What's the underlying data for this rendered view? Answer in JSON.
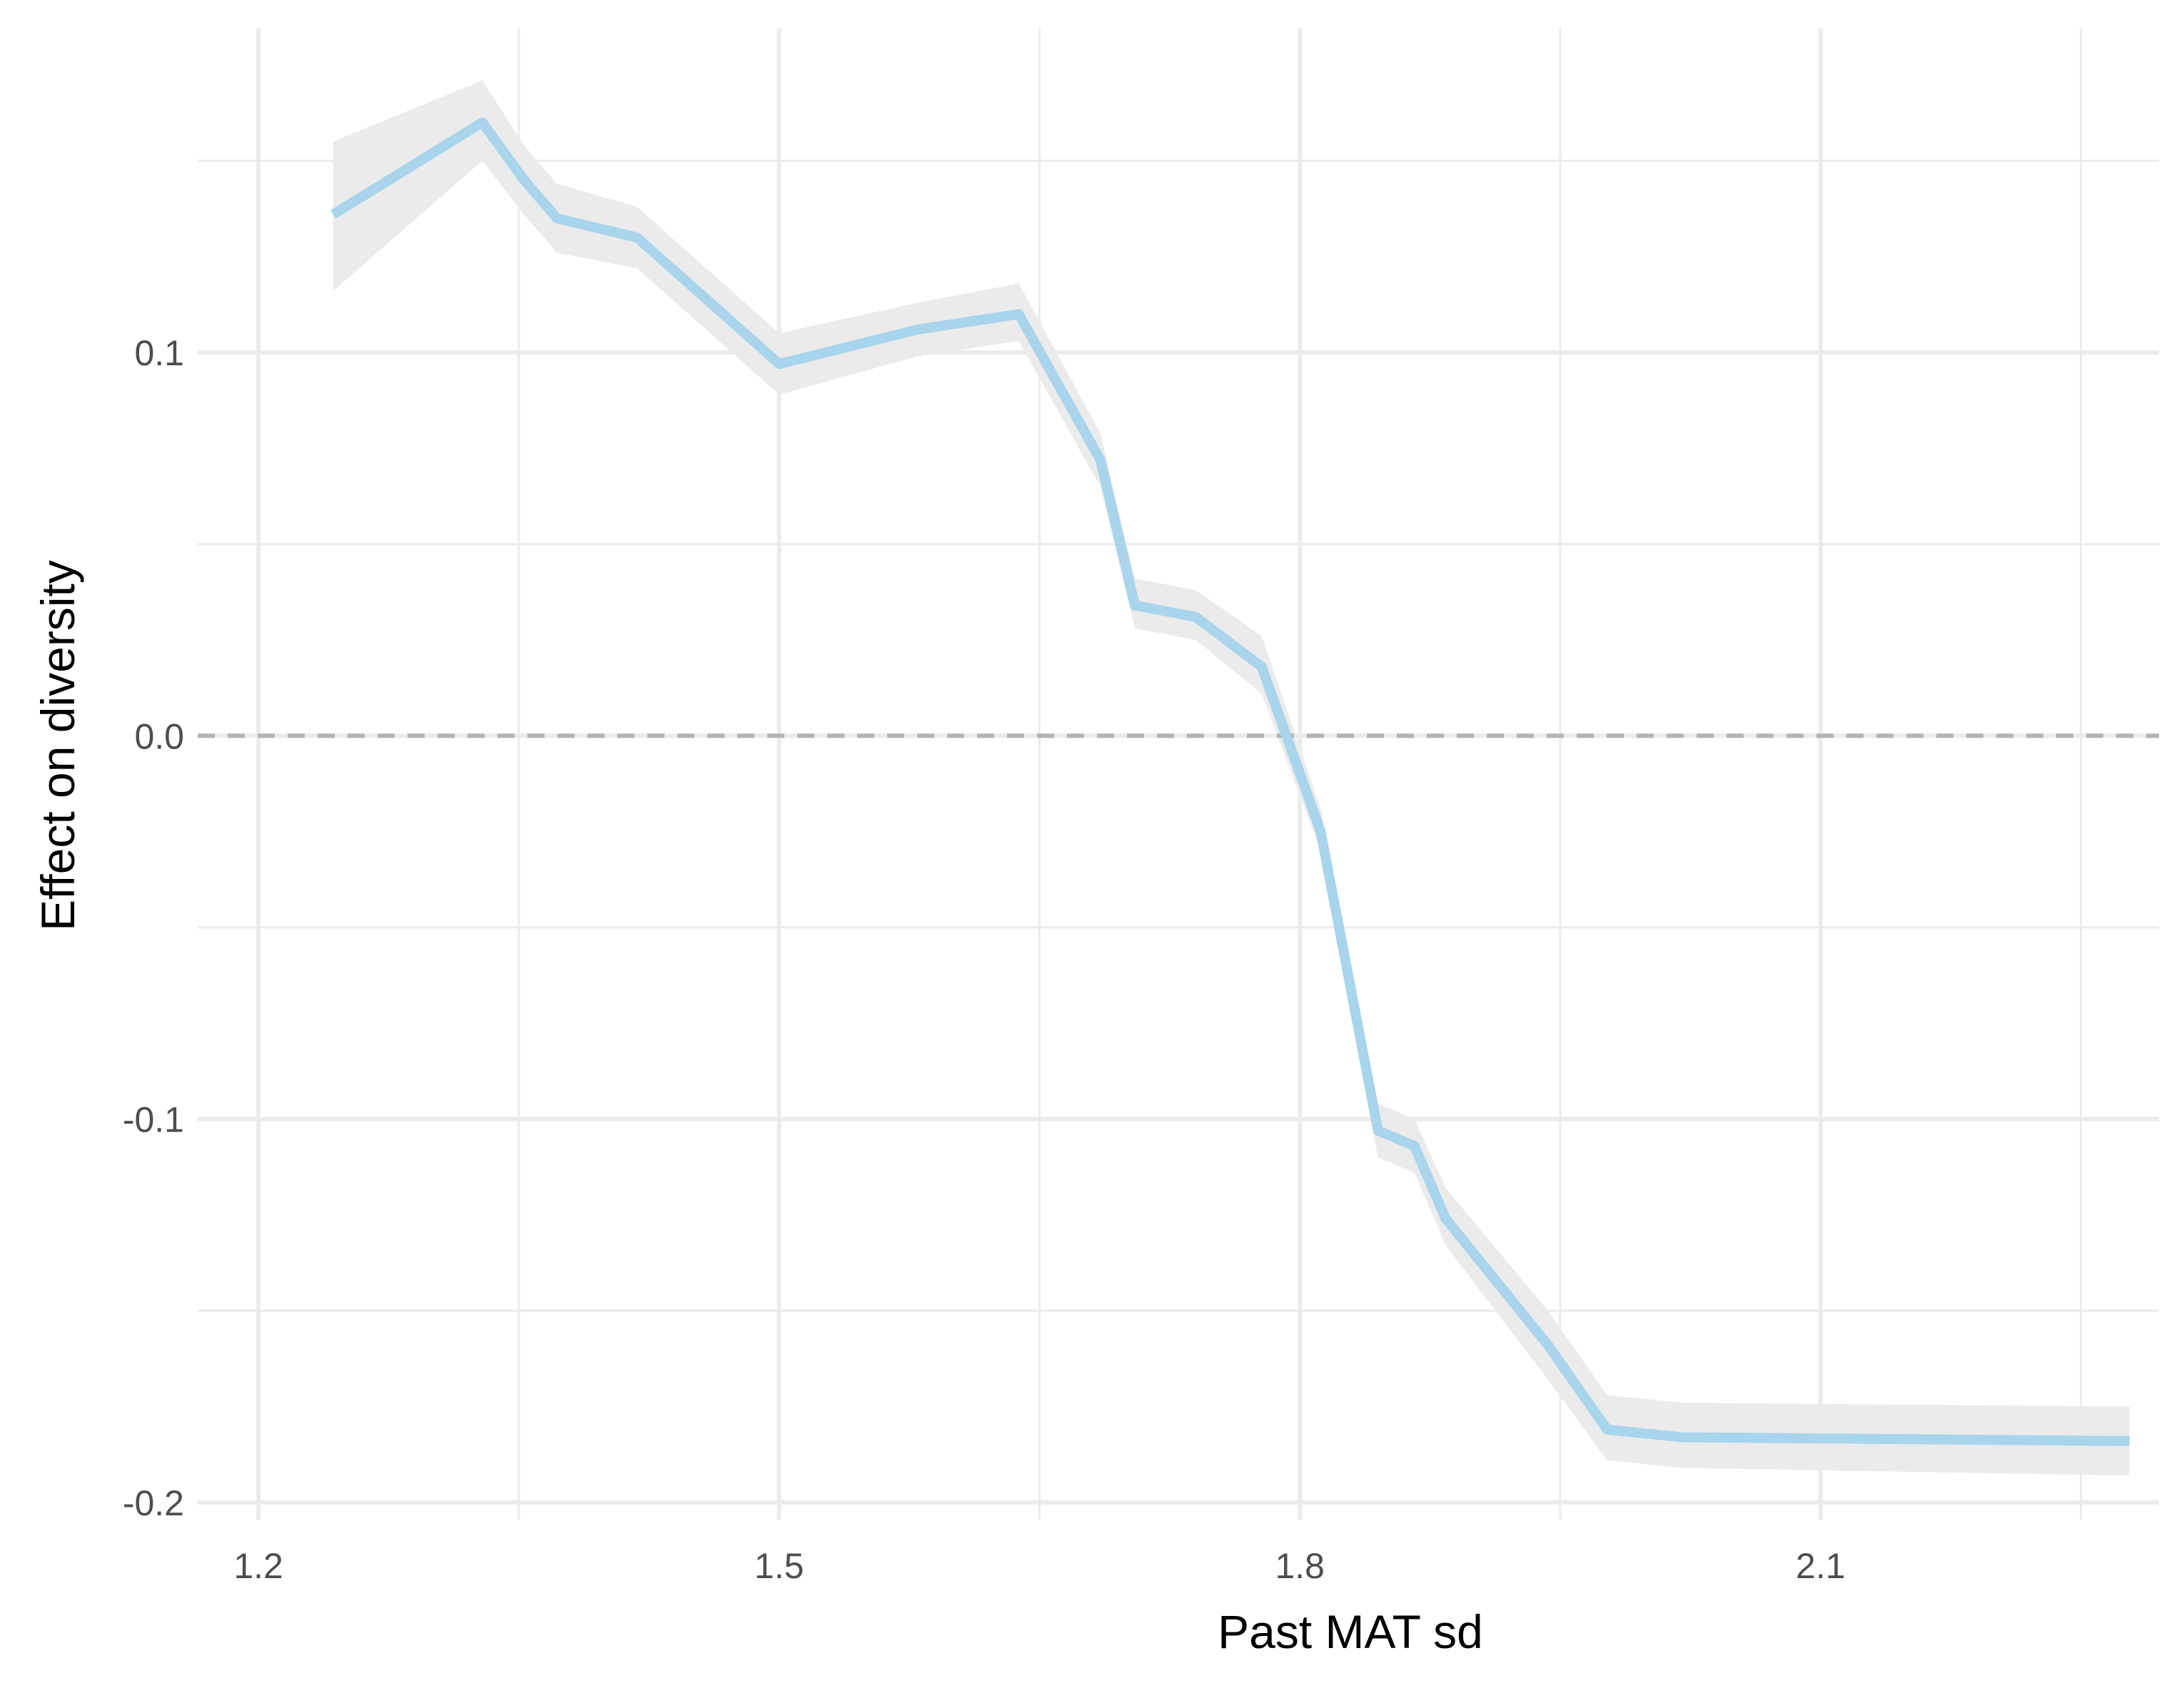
{
  "chart_data": {
    "type": "line",
    "title": "",
    "xlabel": "Past MAT sd",
    "ylabel": "Effect on diversity",
    "xlim": [
      1.165,
      2.295
    ],
    "ylim": [
      -0.2045,
      0.1845
    ],
    "x_ticks": [
      1.2,
      1.5,
      1.8,
      2.1
    ],
    "x_tick_labels": [
      "1.2",
      "1.5",
      "1.8",
      "2.1"
    ],
    "y_ticks": [
      -0.2,
      -0.1,
      0.0,
      0.1
    ],
    "y_tick_labels": [
      "-0.2",
      "-0.1",
      "0.0",
      "0.1"
    ],
    "x_minor": [
      1.35,
      1.65,
      1.95,
      2.25
    ],
    "y_minor": [
      -0.15,
      -0.05,
      0.05,
      0.15
    ],
    "grid": true,
    "reference_line": {
      "y": 0,
      "style": "dashed",
      "color": "#b3b3b3"
    },
    "line_color": "#a8d4ec",
    "band_color": "#ebebeb",
    "series": [
      {
        "x": [
          1.243,
          1.329,
          1.353,
          1.372,
          1.418,
          1.5,
          1.58,
          1.638,
          1.685,
          1.705,
          1.74,
          1.778,
          1.812,
          1.845,
          1.866,
          1.884,
          1.943,
          1.977,
          2.02,
          2.278
        ],
        "y": [
          0.136,
          0.16,
          0.145,
          0.135,
          0.13,
          0.097,
          0.106,
          0.11,
          0.072,
          0.034,
          0.031,
          0.018,
          -0.025,
          -0.103,
          -0.107,
          -0.126,
          -0.159,
          -0.181,
          -0.183,
          -0.184
        ],
        "lower": [
          0.116,
          0.15,
          0.136,
          0.126,
          0.122,
          0.089,
          0.099,
          0.103,
          0.065,
          0.028,
          0.025,
          0.011,
          -0.03,
          -0.11,
          -0.114,
          -0.133,
          -0.168,
          -0.189,
          -0.191,
          -0.193
        ],
        "upper": [
          0.155,
          0.171,
          0.154,
          0.144,
          0.138,
          0.105,
          0.113,
          0.118,
          0.079,
          0.041,
          0.038,
          0.026,
          -0.019,
          -0.096,
          -0.1,
          -0.118,
          -0.15,
          -0.172,
          -0.174,
          -0.175
        ]
      }
    ]
  }
}
